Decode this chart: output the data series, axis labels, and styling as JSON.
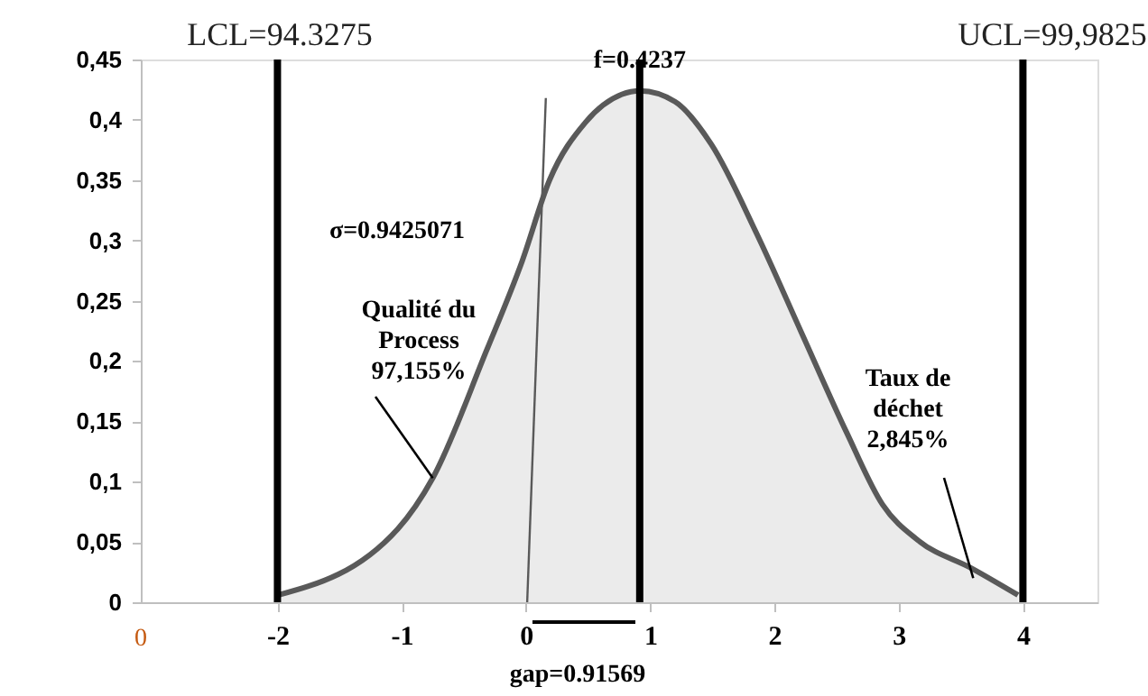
{
  "chart_data": {
    "type": "area",
    "x": [
      -1.99,
      -1.03,
      -0.75,
      -0.32,
      -0.03,
      0.19,
      0.48,
      0.77,
      0.92,
      1.2,
      1.49,
      1.86,
      2.22,
      2.58,
      2.87,
      3.16,
      3.59,
      3.96
    ],
    "series": [
      {
        "color": "#595959",
        "values": [
          0.006,
          0.061,
          0.103,
          0.208,
          0.283,
          0.35,
          0.398,
          0.421,
          0.424,
          0.415,
          0.38,
          0.305,
          0.223,
          0.141,
          0.081,
          0.051,
          0.028,
          0.006
        ]
      },
      {
        "type": "line",
        "color": "#595959",
        "x": [
          0.01,
          0.16
        ],
        "values": [
          0,
          0.418
        ]
      }
    ],
    "xlim": [
      -3.1,
      4.6
    ],
    "xticks": [
      -2,
      -1,
      0,
      1,
      2,
      3,
      4
    ],
    "ylim": [
      0,
      0.45
    ],
    "yticks": [
      0,
      {
        "value": 0.05,
        "label": "0,05"
      },
      {
        "value": 0.1,
        "label": "0,1"
      },
      {
        "value": 0.15,
        "label": "0,15"
      },
      {
        "value": 0.2,
        "label": "0,2"
      },
      {
        "value": 0.25,
        "label": "0,25"
      },
      {
        "value": 0.3,
        "label": "0,3"
      },
      {
        "value": 0.35,
        "label": "0,35"
      },
      {
        "value": 0.4,
        "label": "0,4"
      },
      {
        "value": 0.45,
        "label": "0,45"
      }
    ],
    "ref_lines": [
      {
        "axis": "x",
        "value": -2,
        "color": "#000000"
      },
      {
        "axis": "x",
        "value": 0.91569,
        "color": "#000000"
      },
      {
        "axis": "x",
        "value": 4,
        "color": "#000000"
      }
    ],
    "annotations": [
      "σ=0.9425071",
      {
        "text": "Qualité du\nProcess\n97,155%",
        "x": -0.75,
        "y": 0.103
      },
      {
        "text": "Taux de\ndéchet\n2,845%",
        "x": 3.6,
        "y": 0.02
      },
      "gap=0.91569",
      "LCL=94.3275",
      "UCL=99,9825",
      "0",
      {
        "text": "f=0.4237",
        "x": 0.91569,
        "y": 0.4237
      }
    ],
    "grid": false
  }
}
